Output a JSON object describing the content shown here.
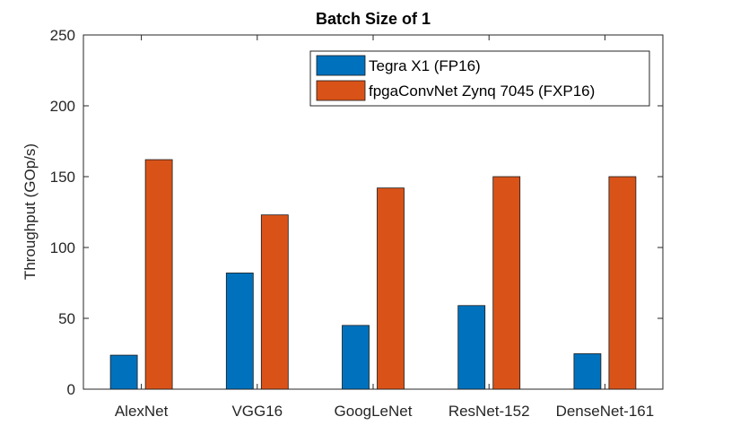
{
  "chart_data": {
    "type": "bar",
    "title": "Batch Size of 1",
    "xlabel": "",
    "ylabel": "Throughput (GOp/s)",
    "ylim": [
      0,
      250
    ],
    "yticks": [
      "0",
      "50",
      "100",
      "150",
      "200",
      "250"
    ],
    "categories": [
      "AlexNet",
      "VGG16",
      "GoogLeNet",
      "ResNet-152",
      "DenseNet-161"
    ],
    "series": [
      {
        "name": "Tegra X1 (FP16)",
        "color": "#0072BD",
        "values": [
          24,
          82,
          45,
          59,
          25
        ]
      },
      {
        "name": "fpgaConvNet Zynq 7045 (FXP16)",
        "color": "#D95319",
        "values": [
          162,
          123,
          142,
          150,
          150
        ]
      }
    ],
    "legend_position": "top-right",
    "grid": false
  }
}
